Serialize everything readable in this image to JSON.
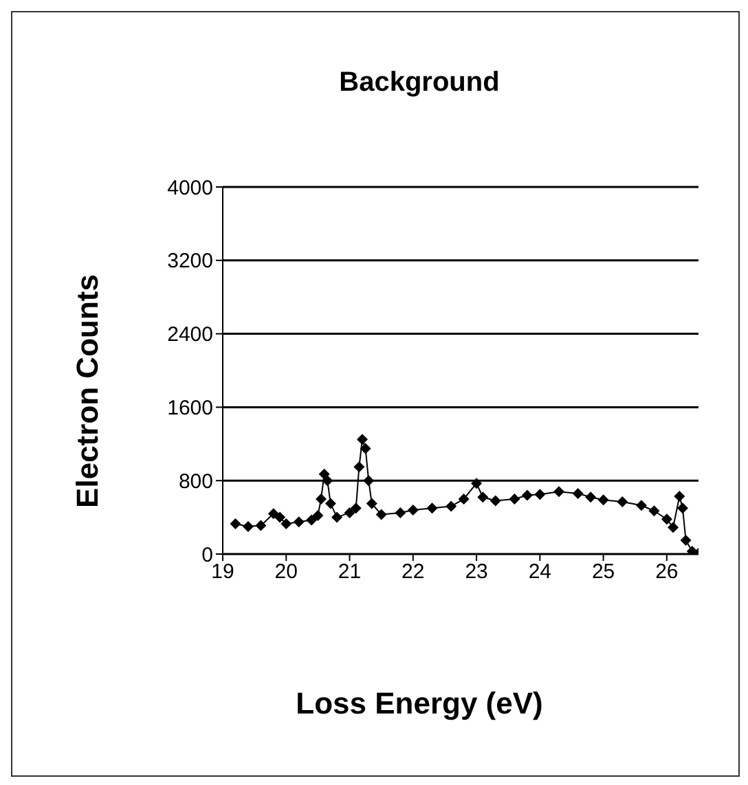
{
  "chart_data": {
    "type": "line",
    "title": "Background",
    "xlabel": "Loss Energy (eV)",
    "ylabel": "Electron Counts",
    "x": [
      19.2,
      19.4,
      19.6,
      19.8,
      19.9,
      20.0,
      20.2,
      20.4,
      20.5,
      20.55,
      20.6,
      20.65,
      20.7,
      20.8,
      21.0,
      21.1,
      21.15,
      21.2,
      21.25,
      21.3,
      21.35,
      21.5,
      21.8,
      22.0,
      22.3,
      22.6,
      22.8,
      23.0,
      23.1,
      23.3,
      23.6,
      23.8,
      24.0,
      24.3,
      24.6,
      24.8,
      25.0,
      25.3,
      25.6,
      25.8,
      26.0,
      26.1,
      26.2,
      26.25,
      26.3,
      26.4,
      26.5
    ],
    "series": [
      {
        "color": "#000000",
        "values": [
          330,
          300,
          310,
          440,
          400,
          330,
          350,
          370,
          420,
          600,
          870,
          800,
          550,
          400,
          450,
          500,
          950,
          1250,
          1150,
          800,
          550,
          430,
          450,
          480,
          500,
          520,
          600,
          770,
          620,
          580,
          600,
          640,
          650,
          680,
          660,
          620,
          590,
          570,
          530,
          470,
          380,
          290,
          630,
          500,
          150,
          30,
          10
        ]
      }
    ],
    "xlim": [
      19,
      26.5
    ],
    "xticks": [
      19,
      20,
      21,
      22,
      23,
      24,
      25,
      26
    ],
    "ylim": [
      0,
      4000
    ],
    "yticks": [
      0,
      800,
      1600,
      2400,
      3200,
      4000
    ],
    "grid": "y",
    "marker": "diamond",
    "line_style": "solid",
    "legend": false
  }
}
